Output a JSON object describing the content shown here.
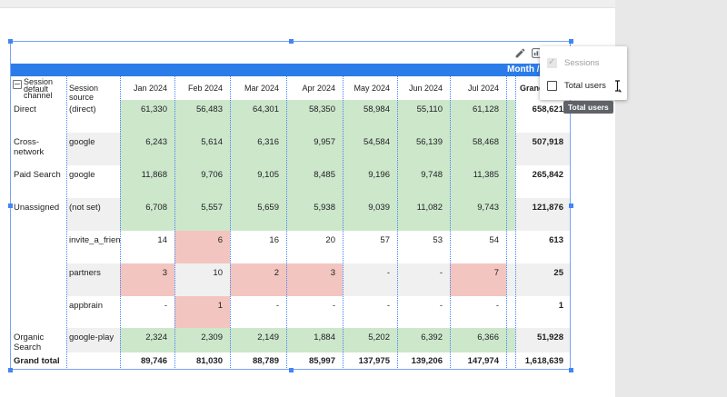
{
  "colors": {
    "bar_blue": "#2b7ce9",
    "selection_blue": "#4285f4",
    "positive_green": "#cde7cb",
    "negative_pink": "#f3c5c0",
    "band_gray": "#f0f0f0",
    "tooltip_gray": "#5f6368"
  },
  "toolbar": {
    "edit_icon": "pencil-icon",
    "metrics_icon": "optional-metrics-icon"
  },
  "menu": {
    "items": [
      {
        "label": "Sessions",
        "checked": true,
        "disabled": true
      },
      {
        "label": "Total users",
        "checked": false,
        "disabled": false
      }
    ]
  },
  "tooltip": {
    "text": "Total users"
  },
  "table": {
    "metric_header": "Month / Sessions",
    "corner_header": "Session default channel",
    "source_header": "Session source",
    "grand_total_col_header": "Grand total",
    "months": [
      "Jan 2024",
      "Feb 2024",
      "Mar 2024",
      "Apr 2024",
      "May 2024",
      "Jun 2024",
      "Jul 2024"
    ],
    "rows": [
      {
        "channel": "Direct",
        "source": "(direct)",
        "values": [
          "61,330",
          "56,483",
          "64,301",
          "58,350",
          "58,984",
          "55,110",
          "61,128"
        ],
        "grand_total": "658,621",
        "value_colors": [
          "green",
          "green",
          "green",
          "green",
          "green",
          "green",
          "green"
        ],
        "strip_color": "green",
        "band": false
      },
      {
        "channel": "Cross-network",
        "source": "google",
        "values": [
          "6,243",
          "5,614",
          "6,316",
          "9,957",
          "54,584",
          "56,139",
          "58,468"
        ],
        "grand_total": "507,918",
        "value_colors": [
          "green",
          "green",
          "green",
          "green",
          "green",
          "green",
          "green"
        ],
        "strip_color": "green",
        "band": true
      },
      {
        "channel": "Paid Search",
        "source": "google",
        "values": [
          "11,868",
          "9,706",
          "9,105",
          "8,485",
          "9,196",
          "9,748",
          "11,385"
        ],
        "grand_total": "265,842",
        "value_colors": [
          "green",
          "green",
          "green",
          "green",
          "green",
          "green",
          "green"
        ],
        "strip_color": "green",
        "band": false
      },
      {
        "channel": "Unassigned",
        "source": "(not set)",
        "values": [
          "6,708",
          "5,557",
          "5,659",
          "5,938",
          "9,039",
          "11,082",
          "9,743"
        ],
        "grand_total": "121,876",
        "value_colors": [
          "green",
          "green",
          "green",
          "green",
          "green",
          "green",
          "green"
        ],
        "strip_color": "green",
        "band": true
      },
      {
        "channel": "",
        "source": "invite_a_friend",
        "values": [
          "14",
          "6",
          "16",
          "20",
          "57",
          "53",
          "54"
        ],
        "grand_total": "613",
        "value_colors": [
          "white",
          "pink",
          "white",
          "white",
          "white",
          "white",
          "white"
        ],
        "strip_color": "white",
        "band": false
      },
      {
        "channel": "",
        "source": "partners",
        "values": [
          "3",
          "10",
          "2",
          "3",
          "-",
          "-",
          "7"
        ],
        "grand_total": "25",
        "value_colors": [
          "pink",
          "band",
          "pink",
          "pink",
          "band",
          "band",
          "pink"
        ],
        "strip_color": "band",
        "band": true
      },
      {
        "channel": "",
        "source": "appbrain",
        "values": [
          "-",
          "1",
          "-",
          "-",
          "-",
          "-",
          "-"
        ],
        "grand_total": "1",
        "value_colors": [
          "white",
          "pink",
          "white",
          "white",
          "white",
          "white",
          "white"
        ],
        "strip_color": "white",
        "band": false
      },
      {
        "channel": "Organic Search",
        "source": "google-play",
        "values": [
          "2,324",
          "2,309",
          "2,149",
          "1,884",
          "5,202",
          "6,392",
          "6,366"
        ],
        "grand_total": "51,928",
        "value_colors": [
          "green",
          "green",
          "green",
          "green",
          "green",
          "green",
          "green"
        ],
        "strip_color": "green",
        "band": true
      }
    ],
    "grand_total_row": {
      "label": "Grand total",
      "values": [
        "89,746",
        "81,030",
        "88,789",
        "85,997",
        "137,975",
        "139,206",
        "147,974"
      ],
      "grand_total": "1,618,639"
    }
  }
}
